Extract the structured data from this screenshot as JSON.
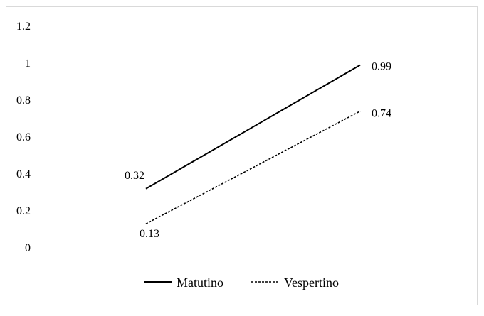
{
  "chart_data": {
    "type": "line",
    "title": "",
    "xlabel": "",
    "ylabel": "",
    "x": [
      0,
      1
    ],
    "ylim": [
      0,
      1.2
    ],
    "yticks": [
      0,
      0.2,
      0.4,
      0.6,
      0.8,
      1,
      1.2
    ],
    "ytick_labels": [
      "0",
      "0.2",
      "0.4",
      "0.6",
      "0.8",
      "1",
      "1.2"
    ],
    "grid": false,
    "legend_position": "bottom",
    "series": [
      {
        "name": "Matutino",
        "style": "solid",
        "color": "#000000",
        "values": [
          0.32,
          0.99
        ],
        "data_labels": [
          "0.32",
          "0.99"
        ]
      },
      {
        "name": "Vespertino",
        "style": "dashed",
        "color": "#000000",
        "values": [
          0.13,
          0.74
        ],
        "data_labels": [
          "0.13",
          "0.74"
        ]
      }
    ]
  }
}
